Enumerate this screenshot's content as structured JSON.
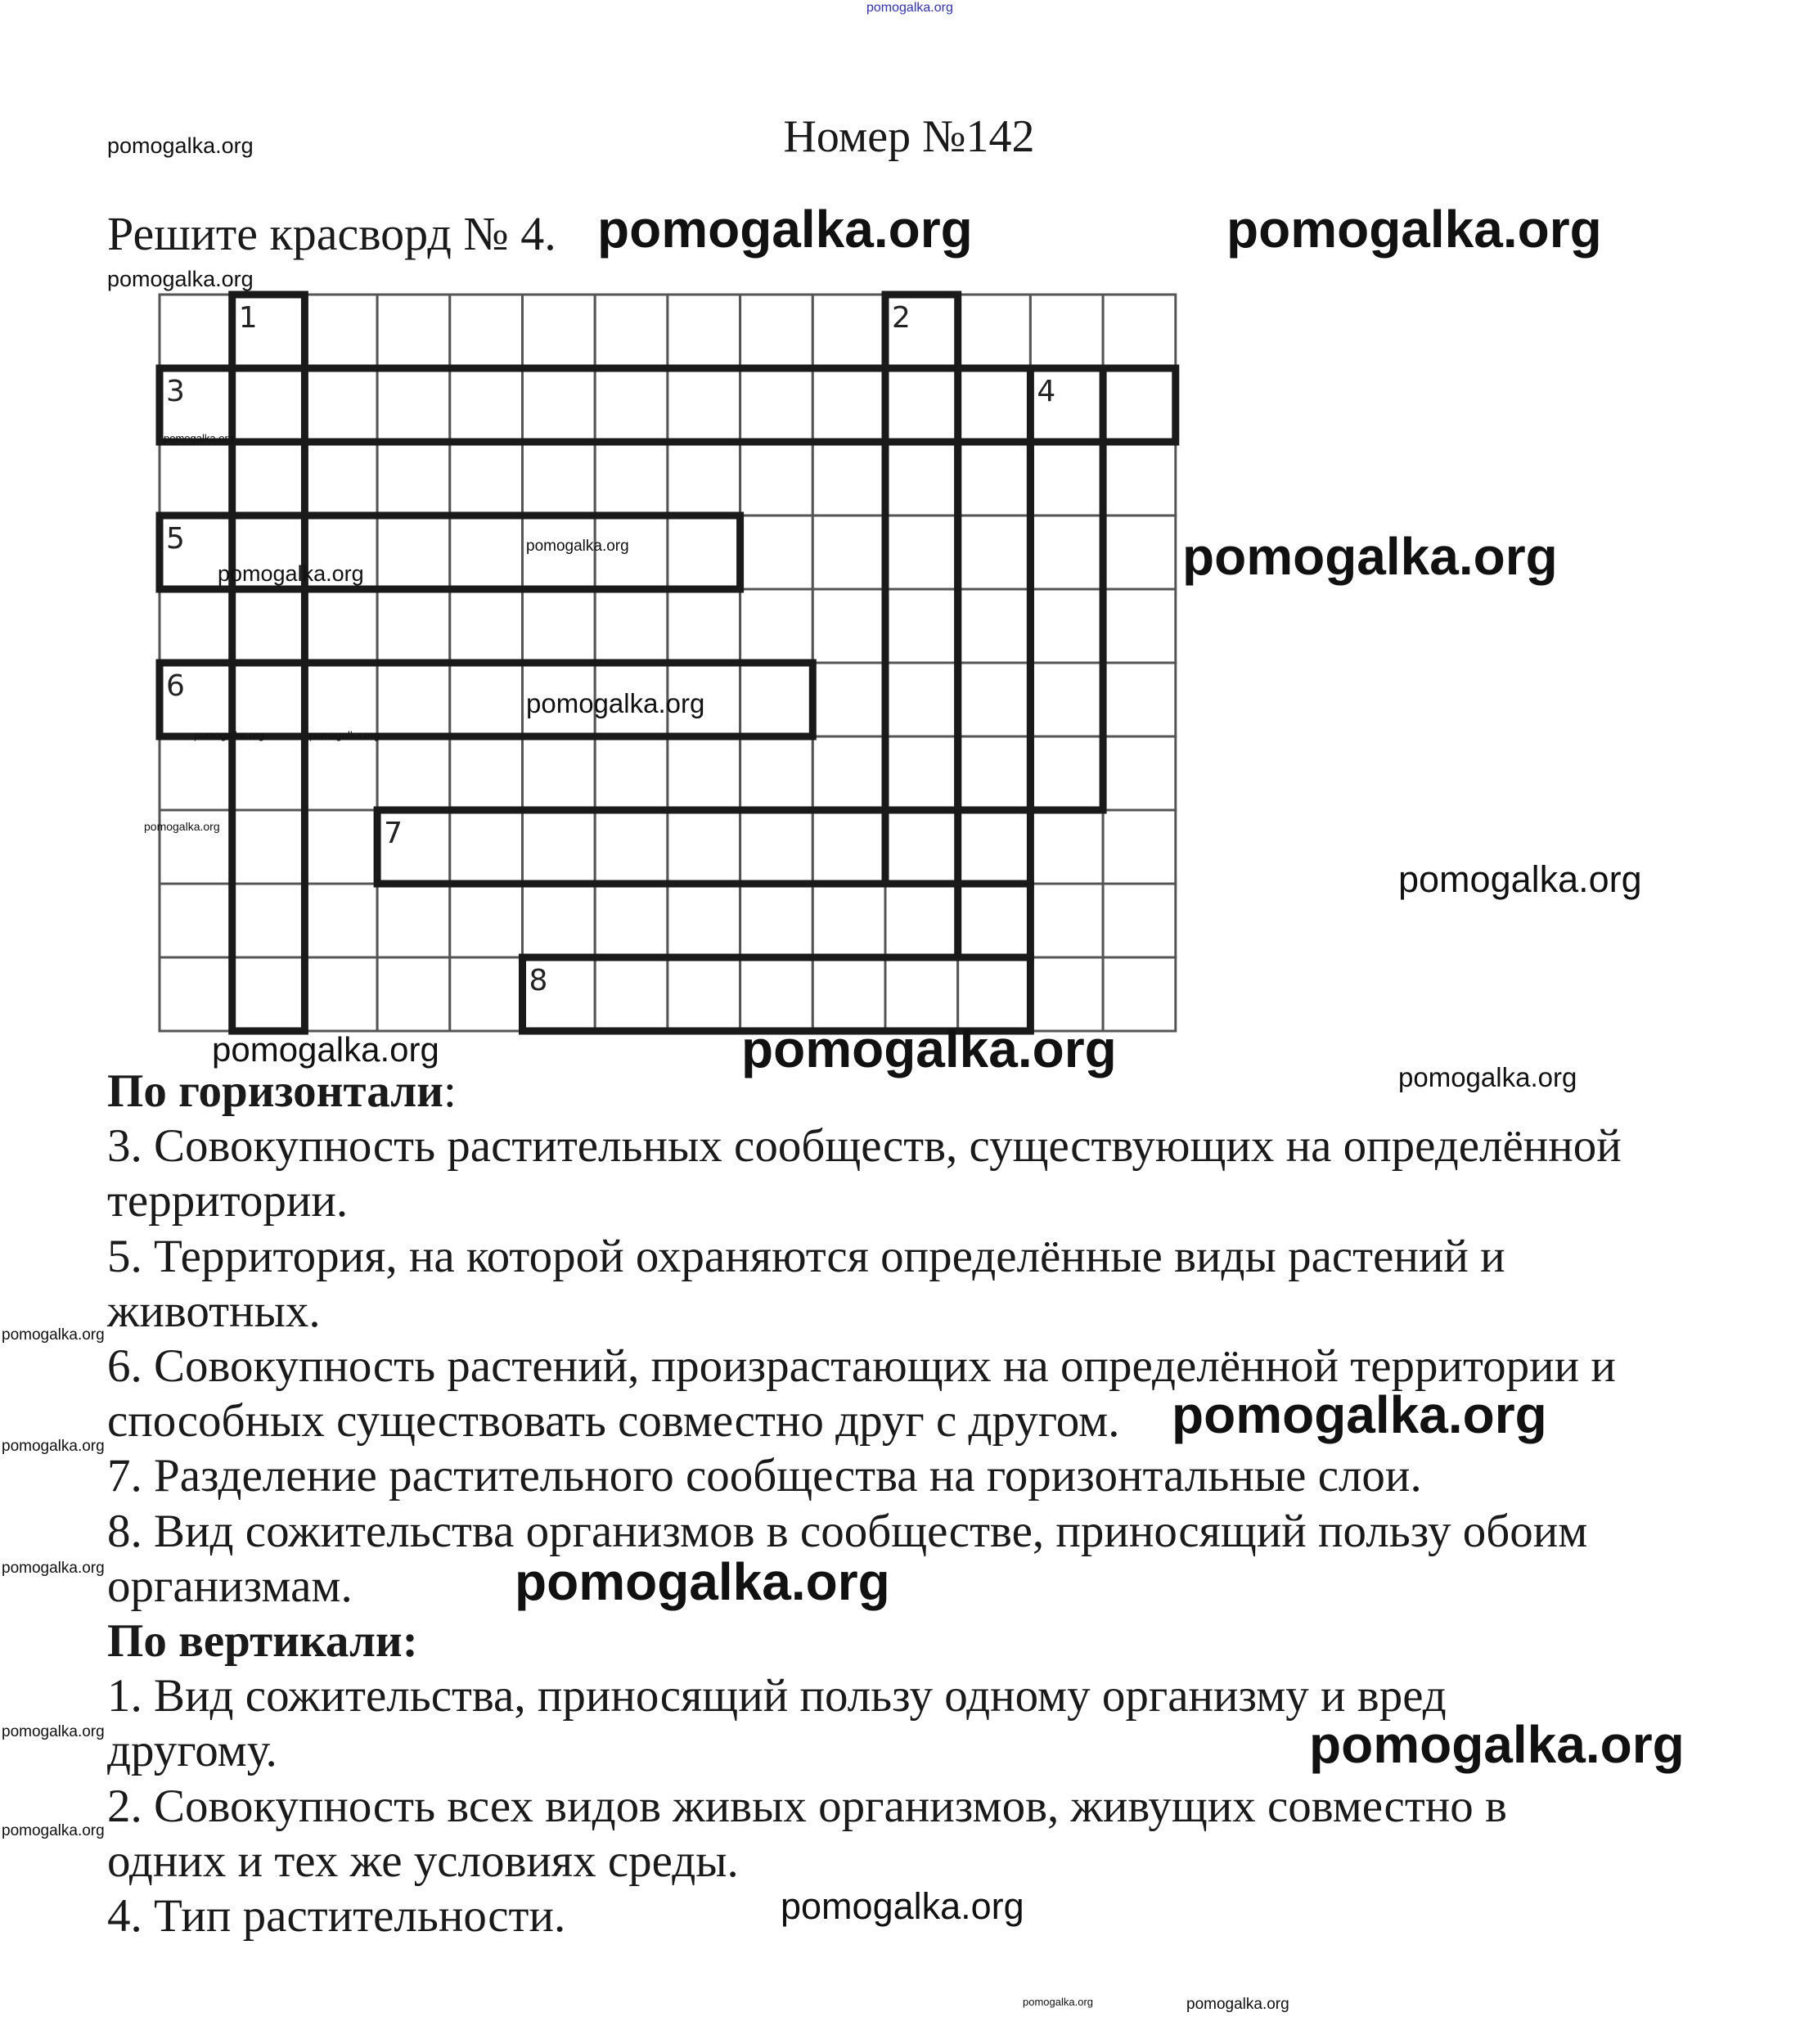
{
  "watermark": "pomogalka.org",
  "title": "Номер №142",
  "task": "Решите красворд № 4.",
  "crossword": {
    "columns": 14,
    "rows": 10,
    "numbers": [
      "1",
      "2",
      "3",
      "4",
      "5",
      "6",
      "7",
      "8"
    ]
  },
  "clues": {
    "across_heading": "По горизонтали",
    "across_colon": ":",
    "across_lines": [
      "3. Совокупность растительных сообществ, существующих на определённой",
      "территории.",
      "5. Территория, на которой охраняются определённые виды растений и",
      "животных.",
      "6. Совокупность растений, произрастающих на определённой территории и",
      "способных существовать совместно друг с другом.",
      "7. Разделение растительного сообщества на горизонтальные слои.",
      "8. Вид сожительства организмов в сообществе, приносящий пользу обоим",
      "организмам."
    ],
    "down_heading": "По вертикали:",
    "down_lines": [
      "1. Вид сожительства, приносящий пользу одному организму и вред",
      "другому.",
      "2. Совокупность всех видов живых организмов, живущих совместно в",
      "одних и тех же условиях среды.",
      "4. Тип растительности."
    ]
  },
  "colors": {
    "watermark_top": "#3030c0",
    "text": "#1a1a1a"
  }
}
